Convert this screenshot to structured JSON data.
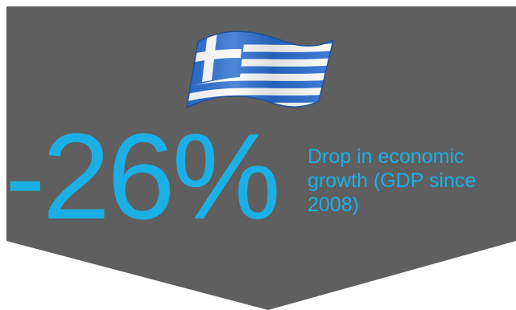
{
  "infographic": {
    "stat_value": "-26%",
    "stat_description_lines": [
      "Drop in economic",
      "growth (GDP since",
      "2008)"
    ],
    "flag_icon": "greece-flag-icon"
  },
  "colors": {
    "panel": "#5f5f5f",
    "accent": "#1ab0e6",
    "flag_blue": "#2a6ed1",
    "flag_white": "#ffffff"
  }
}
